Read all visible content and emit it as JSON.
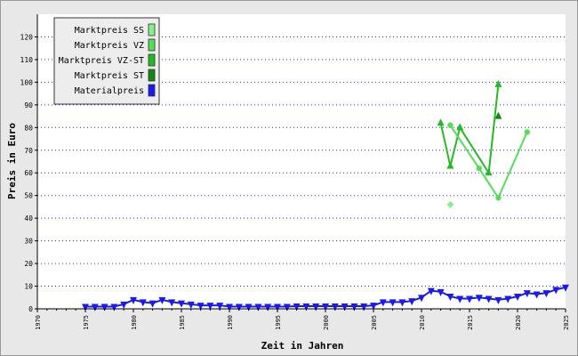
{
  "chart_data": {
    "type": "line",
    "xlabel": "Zeit in Jahren",
    "ylabel": "Preis in Euro",
    "xlim": [
      1970,
      2025
    ],
    "ylim": [
      0,
      130
    ],
    "x_ticks": [
      1970,
      1975,
      1980,
      1985,
      1990,
      1995,
      2000,
      2005,
      2010,
      2015,
      2020,
      2025
    ],
    "y_ticks": [
      0,
      10,
      20,
      30,
      40,
      50,
      60,
      70,
      80,
      90,
      100,
      110,
      120
    ],
    "grid": "horizontal dotted",
    "legend_position": "top-left",
    "legend_order": [
      0,
      1,
      2,
      3,
      4
    ],
    "series": [
      {
        "name": "Marktpreis SS",
        "color": "#88ee88",
        "marker": "diamond",
        "points": [
          [
            2013,
            46
          ]
        ]
      },
      {
        "name": "Marktpreis VZ",
        "color": "#55dd55",
        "marker": "circle",
        "points": [
          [
            2013,
            81
          ],
          [
            2016,
            62
          ],
          [
            2018,
            49
          ],
          [
            2021,
            78
          ]
        ]
      },
      {
        "name": "Marktpreis VZ-ST",
        "color": "#22bb22",
        "marker": "triangle-up",
        "points": [
          [
            2012,
            82
          ],
          [
            2013,
            63
          ],
          [
            2014,
            80
          ],
          [
            2017,
            60
          ],
          [
            2018,
            99
          ]
        ]
      },
      {
        "name": "Marktpreis ST",
        "color": "#118811",
        "marker": "triangle-up",
        "points": [
          [
            2018,
            85
          ]
        ]
      },
      {
        "name": "Materialpreis",
        "color": "#1a1aee",
        "marker": "triangle-down",
        "points": [
          [
            1975,
            1
          ],
          [
            1976,
            1
          ],
          [
            1977,
            1
          ],
          [
            1978,
            1
          ],
          [
            1979,
            2
          ],
          [
            1980,
            4
          ],
          [
            1981,
            3
          ],
          [
            1982,
            2.5
          ],
          [
            1983,
            4
          ],
          [
            1984,
            3
          ],
          [
            1985,
            2.5
          ],
          [
            1986,
            2
          ],
          [
            1987,
            1.5
          ],
          [
            1988,
            1.5
          ],
          [
            1989,
            1.5
          ],
          [
            1990,
            1
          ],
          [
            1991,
            1
          ],
          [
            1992,
            1
          ],
          [
            1993,
            1
          ],
          [
            1994,
            1
          ],
          [
            1995,
            1
          ],
          [
            1996,
            1
          ],
          [
            1997,
            1.2
          ],
          [
            1998,
            1.2
          ],
          [
            1999,
            1.2
          ],
          [
            2000,
            1.2
          ],
          [
            2001,
            1.2
          ],
          [
            2002,
            1.2
          ],
          [
            2003,
            1.2
          ],
          [
            2004,
            1.2
          ],
          [
            2005,
            1.5
          ],
          [
            2006,
            3
          ],
          [
            2007,
            3
          ],
          [
            2008,
            3
          ],
          [
            2009,
            3.5
          ],
          [
            2010,
            5
          ],
          [
            2011,
            8
          ],
          [
            2012,
            7.5
          ],
          [
            2013,
            5.5
          ],
          [
            2014,
            4.5
          ],
          [
            2015,
            4.5
          ],
          [
            2016,
            5
          ],
          [
            2017,
            4.5
          ],
          [
            2018,
            4
          ],
          [
            2019,
            4.5
          ],
          [
            2020,
            5.5
          ],
          [
            2021,
            7
          ],
          [
            2022,
            6.5
          ],
          [
            2023,
            7
          ],
          [
            2024,
            8.5
          ],
          [
            2025,
            9.5
          ]
        ]
      }
    ]
  }
}
